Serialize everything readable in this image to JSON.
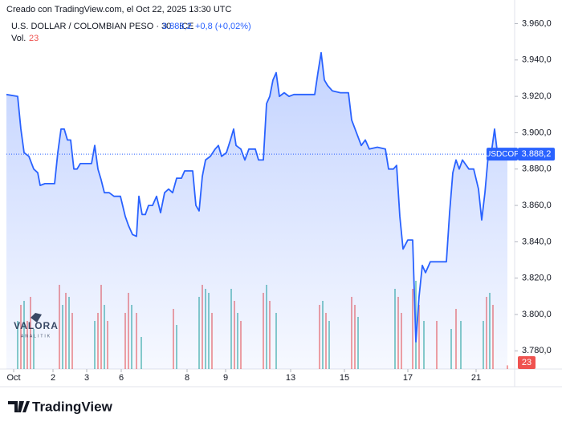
{
  "header": {
    "credit": "Creado con TradingView.com, el Oct 22, 2025 13:30 UTC"
  },
  "legend": {
    "symbol": "U.S. DOLLAR / COLOMBIAN PESO · 30 · ICE",
    "change": "+0,8 (+0,02%)"
  },
  "chart_data": {
    "type": "line",
    "ticker": "USDCOP",
    "color": "#2962ff",
    "x": [
      0,
      7,
      9,
      11,
      14,
      17,
      19.5,
      21,
      24,
      27,
      30,
      32,
      34,
      36,
      38,
      40,
      42,
      44,
      46,
      50,
      53,
      55,
      57,
      59,
      61,
      64,
      67,
      71,
      74,
      76,
      78.5,
      81,
      82.5,
      84.5,
      86.5,
      88.5,
      91,
      93.5,
      96,
      98.5,
      101,
      103.5,
      106,
      109,
      111,
      114,
      116,
      118,
      120,
      122,
      124,
      127,
      130,
      132,
      134,
      137,
      139.5,
      141.5,
      143,
      146,
      148.5,
      151,
      155,
      157,
      160,
      162,
      164,
      166,
      168,
      170,
      173,
      176,
      179,
      186,
      192,
      194,
      196,
      198,
      200,
      203,
      208,
      213,
      215,
      218,
      221,
      223.5,
      226,
      231,
      236,
      238,
      241,
      243,
      245,
      247,
      250,
      253,
      255,
      257,
      259,
      261,
      264,
      268.5,
      274,
      276,
      278,
      280,
      282,
      284,
      288,
      291,
      294,
      296,
      298,
      300,
      302,
      304,
      306,
      312
    ],
    "values": [
      3921,
      3920,
      3902,
      3889,
      3887,
      3880,
      3878,
      3871,
      3872,
      3872,
      3872,
      3889,
      3902,
      3902,
      3896,
      3896,
      3880,
      3880,
      3883,
      3883,
      3883,
      3893,
      3880,
      3874,
      3867,
      3867,
      3865,
      3865,
      3854,
      3849,
      3844,
      3843,
      3865,
      3855,
      3855,
      3860,
      3860,
      3865,
      3856,
      3867,
      3869,
      3867,
      3875,
      3875,
      3879,
      3879,
      3879,
      3860,
      3857,
      3876,
      3885,
      3887,
      3891,
      3893,
      3887,
      3889,
      3896,
      3902,
      3893,
      3891,
      3885,
      3891,
      3891,
      3885,
      3885,
      3916,
      3920,
      3929,
      3933,
      3920,
      3922,
      3920,
      3921,
      3921,
      3921,
      3933,
      3944,
      3929,
      3926,
      3923,
      3922,
      3922,
      3907,
      3900,
      3893,
      3896,
      3891,
      3892,
      3891,
      3880,
      3880,
      3882,
      3854,
      3836,
      3841,
      3841,
      3785,
      3810,
      3827,
      3823,
      3829,
      3829,
      3829,
      3856,
      3878,
      3885,
      3880,
      3885,
      3880,
      3880,
      3869,
      3852,
      3867,
      3887,
      3889,
      3902,
      3887,
      3888.2
    ],
    "last": {
      "value": 3888.2,
      "label": "3.888,2"
    },
    "xlim": [
      0,
      316
    ],
    "xticks": [
      {
        "value": 4.5,
        "label": "Oct"
      },
      {
        "value": 29,
        "label": "2"
      },
      {
        "value": 50,
        "label": "3"
      },
      {
        "value": 71.5,
        "label": "6"
      },
      {
        "value": 112.5,
        "label": "8"
      },
      {
        "value": 136.5,
        "label": "9"
      },
      {
        "value": 177,
        "label": "13"
      },
      {
        "value": 210.5,
        "label": "15"
      },
      {
        "value": 250,
        "label": "17"
      },
      {
        "value": 292.5,
        "label": "21"
      }
    ],
    "ylim": [
      3770,
      3973
    ],
    "yticks": [
      {
        "value": 3780,
        "label": "3.780,0"
      },
      {
        "value": 3800,
        "label": "3.800,0"
      },
      {
        "value": 3820,
        "label": "3.820,0"
      },
      {
        "value": 3840,
        "label": "3.840,0"
      },
      {
        "value": 3860,
        "label": "3.860,0"
      },
      {
        "value": 3880,
        "label": "3.880,0"
      },
      {
        "value": 3900,
        "label": "3.900,0"
      },
      {
        "value": 3920,
        "label": "3.920,0"
      },
      {
        "value": 3940,
        "label": "3.940,0"
      },
      {
        "value": 3960,
        "label": "3.960,0"
      }
    ],
    "volume": {
      "label": "Vol.",
      "last": 23,
      "ylim": [
        0,
        600
      ],
      "up_color": "#26a69a",
      "down_color": "#ef5350",
      "x": [
        7,
        9,
        11,
        13,
        15,
        17,
        33,
        35,
        37,
        39,
        41,
        55,
        57,
        59,
        61,
        63,
        74,
        76,
        78,
        81,
        84,
        104,
        106,
        120,
        122,
        124,
        126,
        128,
        140,
        142,
        144,
        146,
        160,
        162,
        164,
        168,
        195,
        197,
        199,
        201,
        215,
        217,
        219,
        242,
        244,
        246,
        253,
        255,
        257,
        260,
        268,
        277,
        280,
        283,
        297,
        299,
        301,
        303,
        312
      ],
      "values": [
        300,
        400,
        425,
        300,
        450,
        250,
        525,
        400,
        475,
        450,
        350,
        300,
        350,
        525,
        400,
        300,
        350,
        475,
        400,
        350,
        200,
        375,
        275,
        450,
        525,
        500,
        475,
        350,
        500,
        425,
        350,
        300,
        475,
        525,
        425,
        350,
        400,
        425,
        350,
        300,
        450,
        400,
        325,
        500,
        450,
        350,
        500,
        550,
        400,
        300,
        300,
        250,
        375,
        300,
        300,
        450,
        475,
        400,
        23
      ],
      "up": [
        true,
        false,
        true,
        false,
        false,
        true,
        false,
        true,
        false,
        true,
        false,
        true,
        false,
        false,
        true,
        false,
        false,
        false,
        true,
        false,
        true,
        false,
        true,
        true,
        false,
        true,
        true,
        false,
        true,
        false,
        true,
        false,
        false,
        true,
        false,
        true,
        false,
        true,
        false,
        true,
        false,
        false,
        true,
        true,
        false,
        false,
        false,
        true,
        false,
        true,
        false,
        true,
        false,
        true,
        true,
        false,
        true,
        false,
        false
      ]
    }
  },
  "watermark": {
    "name": "VALORA",
    "tagline": "ANALITIK"
  },
  "footer": {
    "brand": "TradingView"
  }
}
